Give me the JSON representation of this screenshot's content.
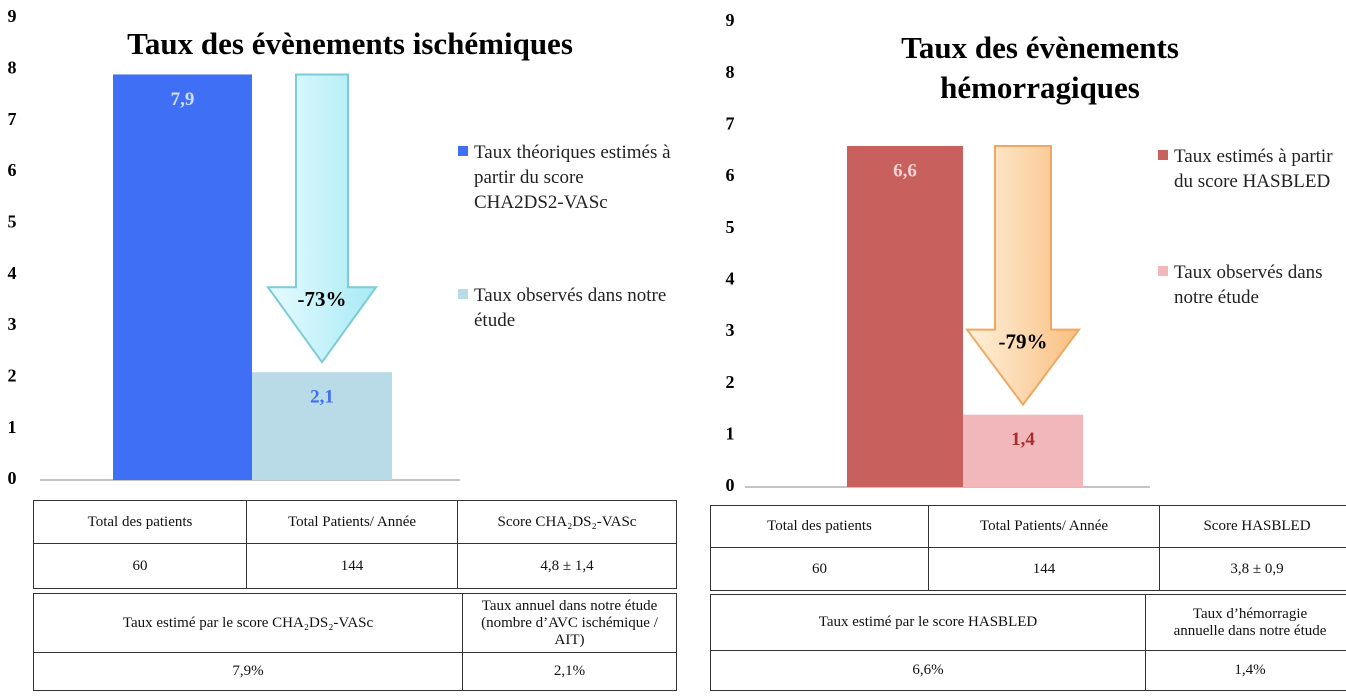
{
  "chart_data": [
    {
      "type": "bar",
      "title": "Taux des évènements ischémiques",
      "categories": [
        null
      ],
      "series": [
        {
          "name": "Taux théoriques estimés à partir du score CHA2DS2-VASc",
          "color": "#3f6ff5",
          "values": [
            7.9
          ],
          "value_labels": [
            "7,9"
          ]
        },
        {
          "name": "Taux observés dans notre étude",
          "color": "#b9dbe7",
          "values": [
            2.1
          ],
          "value_labels": [
            "2,1"
          ]
        }
      ],
      "annotation": "-73%",
      "ylim": [
        0,
        9
      ],
      "yticks": [
        0,
        1,
        2,
        3,
        4,
        5,
        6,
        7,
        8,
        9
      ],
      "grid": false,
      "legend": "right"
    },
    {
      "type": "bar",
      "title": "Taux des évènements hémorragiques",
      "categories": [
        null
      ],
      "series": [
        {
          "name": "Taux estimés à partir du score HASBLED",
          "color": "#c8605d",
          "values": [
            6.6
          ],
          "value_labels": [
            "6,6"
          ]
        },
        {
          "name": "Taux observés dans notre étude",
          "color": "#f2b7ba",
          "values": [
            1.4
          ],
          "value_labels": [
            "1,4"
          ]
        }
      ],
      "annotation": "-79%",
      "ylim": [
        0,
        9
      ],
      "yticks": [
        0,
        1,
        2,
        3,
        4,
        5,
        6,
        7,
        8,
        9
      ],
      "grid": false,
      "legend": "right"
    }
  ],
  "tables": [
    {
      "header": [
        "Total des patients",
        "Total Patients/ Année",
        "Score CHA₂DS₂-VASc"
      ],
      "rows": [
        [
          "60",
          "144",
          "4,8 ± 1,4"
        ]
      ]
    },
    {
      "header": [
        "Taux estimé par le score CHA₂DS₂-VASc",
        "Taux annuel dans notre étude (nombre d’AVC ischémique / AIT)"
      ],
      "rows": [
        [
          "7,9%",
          "2,1%"
        ]
      ]
    },
    {
      "header": [
        "Total des patients",
        "Total Patients/ Année",
        "Score HASBLED"
      ],
      "rows": [
        [
          "60",
          "144",
          "3,8 ± 0,9"
        ]
      ]
    },
    {
      "header": [
        "Taux estimé par le score HASBLED",
        "Taux d’hémorragie annuelle dans notre étude"
      ],
      "rows": [
        [
          "6,6%",
          "1,4%"
        ]
      ]
    }
  ]
}
